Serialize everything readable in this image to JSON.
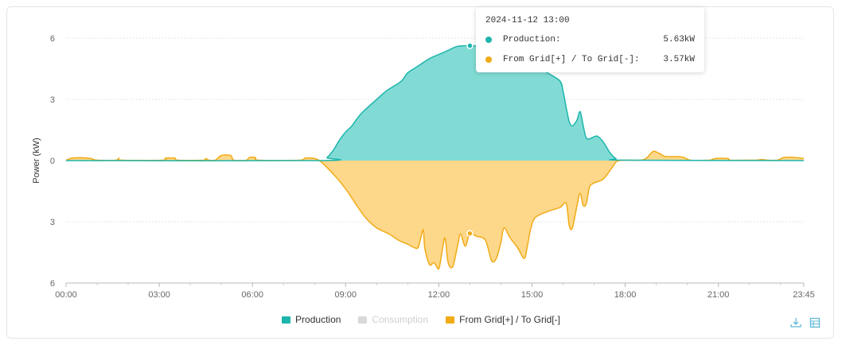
{
  "chart_data": {
    "type": "area",
    "ylabel": "Power (kW)",
    "x_ticks": [
      "00:00",
      "03:00",
      "06:00",
      "09:00",
      "12:00",
      "15:00",
      "18:00",
      "21:00",
      "23:45"
    ],
    "y_ticks": [
      {
        "value": 6,
        "label": "6"
      },
      {
        "value": 3,
        "label": "3"
      },
      {
        "value": 0,
        "label": "0"
      },
      {
        "value": -3,
        "label": "3"
      },
      {
        "value": -6,
        "label": "6"
      }
    ],
    "ylim": [
      -6,
      6
    ],
    "x_range_hours": [
      0,
      23.75
    ],
    "series": [
      {
        "name": "Production",
        "color": "#1db5ac",
        "fill": "#7ad9d2",
        "points": [
          [
            0,
            0
          ],
          [
            8.2,
            0
          ],
          [
            8.4,
            0.15
          ],
          [
            8.6,
            0.5
          ],
          [
            8.8,
            1.0
          ],
          [
            9.0,
            1.4
          ],
          [
            9.2,
            1.7
          ],
          [
            9.5,
            2.3
          ],
          [
            10.0,
            3.0
          ],
          [
            10.3,
            3.4
          ],
          [
            10.5,
            3.6
          ],
          [
            10.8,
            3.9
          ],
          [
            11.0,
            4.3
          ],
          [
            11.3,
            4.6
          ],
          [
            11.7,
            5.0
          ],
          [
            12.0,
            5.2
          ],
          [
            12.3,
            5.4
          ],
          [
            12.6,
            5.6
          ],
          [
            13.0,
            5.63
          ],
          [
            13.5,
            5.6
          ],
          [
            14.0,
            5.5
          ],
          [
            14.5,
            5.3
          ],
          [
            15.0,
            4.8
          ],
          [
            15.5,
            4.3
          ],
          [
            15.9,
            3.9
          ],
          [
            16.0,
            3.4
          ],
          [
            16.1,
            2.6
          ],
          [
            16.2,
            1.9
          ],
          [
            16.3,
            1.7
          ],
          [
            16.45,
            2.0
          ],
          [
            16.55,
            2.4
          ],
          [
            16.65,
            1.7
          ],
          [
            16.75,
            1.1
          ],
          [
            16.9,
            1.1
          ],
          [
            17.1,
            1.2
          ],
          [
            17.3,
            0.9
          ],
          [
            17.5,
            0.4
          ],
          [
            17.7,
            0.1
          ],
          [
            18.0,
            0.02
          ],
          [
            23.75,
            0
          ]
        ]
      },
      {
        "name": "Consumption",
        "color": "#d9d9d9",
        "hidden": true,
        "points": []
      },
      {
        "name": "From Grid[+] / To Grid[-]",
        "color": "#f0ab16",
        "fill": "#fdd584",
        "points": [
          [
            0,
            0.02
          ],
          [
            0.2,
            0.12
          ],
          [
            0.5,
            0.14
          ],
          [
            0.8,
            0.1
          ],
          [
            1.0,
            0.02
          ],
          [
            1.6,
            0.02
          ],
          [
            1.7,
            0.12
          ],
          [
            1.8,
            0.02
          ],
          [
            3.1,
            0.02
          ],
          [
            3.2,
            0.12
          ],
          [
            3.5,
            0.12
          ],
          [
            3.6,
            0.02
          ],
          [
            4.4,
            0.02
          ],
          [
            4.5,
            0.1
          ],
          [
            4.6,
            0.02
          ],
          [
            4.8,
            0.02
          ],
          [
            5.0,
            0.25
          ],
          [
            5.3,
            0.25
          ],
          [
            5.4,
            0.02
          ],
          [
            5.8,
            0.02
          ],
          [
            5.9,
            0.15
          ],
          [
            6.1,
            0.15
          ],
          [
            6.2,
            0.02
          ],
          [
            7.5,
            0.02
          ],
          [
            7.7,
            0.12
          ],
          [
            8.0,
            0.1
          ],
          [
            8.2,
            -0.05
          ],
          [
            8.5,
            -0.5
          ],
          [
            8.8,
            -1.0
          ],
          [
            9.1,
            -1.6
          ],
          [
            9.4,
            -2.3
          ],
          [
            9.7,
            -2.9
          ],
          [
            10.0,
            -3.3
          ],
          [
            10.4,
            -3.6
          ],
          [
            10.7,
            -3.9
          ],
          [
            11.0,
            -4.1
          ],
          [
            11.3,
            -4.3
          ],
          [
            11.4,
            -3.9
          ],
          [
            11.5,
            -3.4
          ],
          [
            11.55,
            -4.3
          ],
          [
            11.7,
            -5.1
          ],
          [
            11.85,
            -5.0
          ],
          [
            12.0,
            -5.3
          ],
          [
            12.1,
            -4.5
          ],
          [
            12.2,
            -3.8
          ],
          [
            12.3,
            -5.0
          ],
          [
            12.45,
            -5.2
          ],
          [
            12.6,
            -4.2
          ],
          [
            12.7,
            -3.6
          ],
          [
            12.85,
            -4.2
          ],
          [
            13.0,
            -3.57
          ],
          [
            13.2,
            -3.7
          ],
          [
            13.5,
            -3.9
          ],
          [
            13.7,
            -4.9
          ],
          [
            13.85,
            -4.8
          ],
          [
            14.0,
            -4.0
          ],
          [
            14.1,
            -3.3
          ],
          [
            14.3,
            -3.8
          ],
          [
            14.55,
            -4.3
          ],
          [
            14.75,
            -4.8
          ],
          [
            14.85,
            -4.2
          ],
          [
            14.95,
            -3.4
          ],
          [
            15.1,
            -2.8
          ],
          [
            15.5,
            -2.5
          ],
          [
            15.9,
            -2.3
          ],
          [
            16.1,
            -2.1
          ],
          [
            16.2,
            -3.2
          ],
          [
            16.3,
            -3.3
          ],
          [
            16.45,
            -2.2
          ],
          [
            16.55,
            -1.6
          ],
          [
            16.65,
            -2.2
          ],
          [
            16.75,
            -2.1
          ],
          [
            16.85,
            -1.3
          ],
          [
            17.0,
            -1.1
          ],
          [
            17.3,
            -0.9
          ],
          [
            17.6,
            -0.3
          ],
          [
            17.8,
            0.0
          ],
          [
            18.5,
            0.02
          ],
          [
            18.7,
            0.15
          ],
          [
            18.9,
            0.45
          ],
          [
            19.1,
            0.35
          ],
          [
            19.3,
            0.2
          ],
          [
            19.7,
            0.2
          ],
          [
            19.9,
            0.15
          ],
          [
            20.1,
            0.02
          ],
          [
            20.7,
            0.02
          ],
          [
            20.9,
            0.1
          ],
          [
            21.3,
            0.1
          ],
          [
            21.4,
            0.02
          ],
          [
            22.0,
            0.02
          ],
          [
            22.2,
            0.02
          ],
          [
            22.4,
            0.05
          ],
          [
            22.6,
            0.02
          ],
          [
            22.9,
            0.02
          ],
          [
            23.1,
            0.15
          ],
          [
            23.5,
            0.15
          ],
          [
            23.75,
            0.1
          ]
        ]
      }
    ],
    "legend": [
      {
        "name": "Production",
        "color": "#1db5ac",
        "active": true
      },
      {
        "name": "Consumption",
        "color": "#d9d9d9",
        "active": false
      },
      {
        "name": "From Grid[+] / To Grid[-]",
        "color": "#f0ab16",
        "active": true
      }
    ],
    "tooltip": {
      "title": "2024-11-12 13:00",
      "hover_x": 13.0,
      "rows": [
        {
          "name": "Production:",
          "value": "5.63kW",
          "color": "#1db5ac",
          "y": 5.63
        },
        {
          "name": "From Grid[+] / To Grid[-]:",
          "value": "3.57kW",
          "color": "#f0ab16",
          "y": -3.57
        }
      ]
    },
    "grid": true,
    "legend_position": "bottom-center"
  },
  "toolbar": {
    "download_icon": "download-icon",
    "data_view_icon": "data-view-icon"
  }
}
